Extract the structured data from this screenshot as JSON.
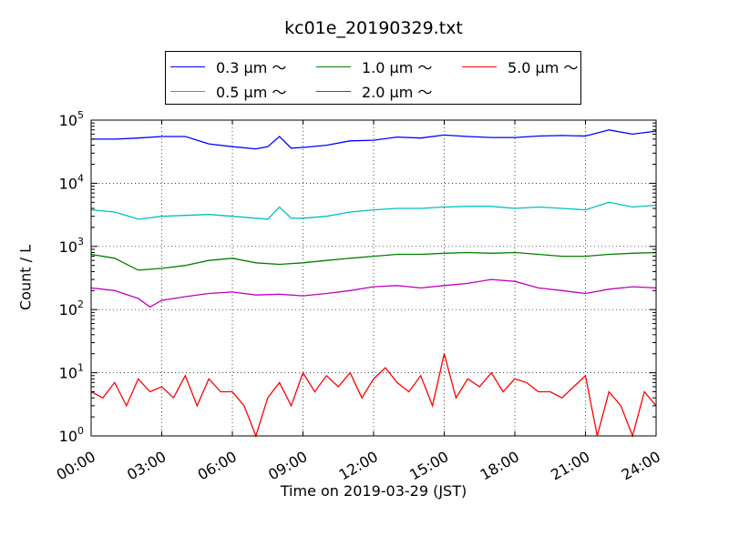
{
  "chart_data": {
    "type": "line",
    "title": "kc01e_20190329.txt",
    "xlabel": "Time on 2019-03-29 (JST)",
    "ylabel": "Count / L",
    "yscale": "log",
    "xlim_hours": [
      0,
      24
    ],
    "ylim": [
      1,
      100000
    ],
    "grid": true,
    "legend_position": "top-center",
    "x_ticks": [
      "00:00",
      "03:00",
      "06:00",
      "09:00",
      "12:00",
      "15:00",
      "18:00",
      "21:00",
      "24:00"
    ],
    "y_ticks": [
      {
        "base": "10",
        "exp": "0",
        "value": 1
      },
      {
        "base": "10",
        "exp": "1",
        "value": 10
      },
      {
        "base": "10",
        "exp": "2",
        "value": 100
      },
      {
        "base": "10",
        "exp": "3",
        "value": 1000
      },
      {
        "base": "10",
        "exp": "4",
        "value": 10000
      },
      {
        "base": "10",
        "exp": "5",
        "value": 100000
      }
    ],
    "series": [
      {
        "name": "0.3 μm ～",
        "color": "#0000ff",
        "x": [
          "00:00",
          "01:00",
          "02:00",
          "03:00",
          "04:00",
          "05:00",
          "06:00",
          "07:00",
          "07:30",
          "08:00",
          "08:30",
          "09:00",
          "10:00",
          "11:00",
          "12:00",
          "13:00",
          "14:00",
          "15:00",
          "16:00",
          "17:00",
          "18:00",
          "19:00",
          "20:00",
          "21:00",
          "22:00",
          "23:00",
          "24:00"
        ],
        "values": [
          50000,
          50000,
          52000,
          55000,
          55000,
          42000,
          38000,
          35000,
          38000,
          55000,
          36000,
          37000,
          40000,
          47000,
          48000,
          54000,
          52000,
          58000,
          55000,
          53000,
          53000,
          56000,
          57000,
          56000,
          70000,
          60000,
          67000
        ]
      },
      {
        "name": "0.5 μm ～",
        "color": "#00bfbf",
        "x": [
          "00:00",
          "01:00",
          "02:00",
          "03:00",
          "04:00",
          "05:00",
          "06:00",
          "07:00",
          "07:30",
          "08:00",
          "08:30",
          "09:00",
          "10:00",
          "11:00",
          "12:00",
          "13:00",
          "14:00",
          "15:00",
          "16:00",
          "17:00",
          "18:00",
          "19:00",
          "20:00",
          "21:00",
          "22:00",
          "23:00",
          "24:00"
        ],
        "values": [
          3800,
          3500,
          2700,
          3000,
          3100,
          3200,
          3000,
          2800,
          2700,
          4200,
          2800,
          2800,
          3000,
          3500,
          3800,
          4000,
          4000,
          4200,
          4300,
          4300,
          4000,
          4200,
          4000,
          3800,
          5000,
          4200,
          4500
        ]
      },
      {
        "name": "1.0 μm ～",
        "color": "#008000",
        "x": [
          "00:00",
          "01:00",
          "02:00",
          "03:00",
          "04:00",
          "05:00",
          "06:00",
          "07:00",
          "08:00",
          "09:00",
          "10:00",
          "11:00",
          "12:00",
          "13:00",
          "14:00",
          "15:00",
          "16:00",
          "17:00",
          "18:00",
          "19:00",
          "20:00",
          "21:00",
          "22:00",
          "23:00",
          "24:00"
        ],
        "values": [
          750,
          650,
          420,
          450,
          500,
          600,
          650,
          550,
          520,
          550,
          600,
          650,
          700,
          750,
          750,
          780,
          800,
          780,
          800,
          750,
          700,
          700,
          750,
          780,
          800
        ]
      },
      {
        "name": "2.0 μm ～",
        "color": "#bf00bf",
        "x": [
          "00:00",
          "01:00",
          "02:00",
          "02:30",
          "03:00",
          "04:00",
          "05:00",
          "06:00",
          "07:00",
          "08:00",
          "09:00",
          "10:00",
          "11:00",
          "12:00",
          "13:00",
          "14:00",
          "15:00",
          "16:00",
          "17:00",
          "18:00",
          "19:00",
          "20:00",
          "21:00",
          "22:00",
          "23:00",
          "24:00"
        ],
        "values": [
          220,
          200,
          150,
          110,
          140,
          160,
          180,
          190,
          170,
          175,
          165,
          180,
          200,
          230,
          240,
          220,
          240,
          260,
          300,
          280,
          220,
          200,
          180,
          210,
          230,
          220
        ]
      },
      {
        "name": "5.0 μm ～",
        "color": "#ff0000",
        "x": [
          "00:00",
          "00:30",
          "01:00",
          "01:30",
          "02:00",
          "02:30",
          "03:00",
          "03:30",
          "04:00",
          "04:30",
          "05:00",
          "05:30",
          "06:00",
          "06:30",
          "07:00",
          "07:30",
          "08:00",
          "08:30",
          "09:00",
          "09:30",
          "10:00",
          "10:30",
          "11:00",
          "11:30",
          "12:00",
          "12:30",
          "13:00",
          "13:30",
          "14:00",
          "14:30",
          "15:00",
          "15:30",
          "16:00",
          "16:30",
          "17:00",
          "17:30",
          "18:00",
          "18:30",
          "19:00",
          "19:30",
          "20:00",
          "20:30",
          "21:00",
          "21:30",
          "22:00",
          "22:30",
          "23:00",
          "23:30",
          "24:00"
        ],
        "values": [
          5,
          4,
          7,
          3,
          8,
          5,
          6,
          4,
          9,
          3,
          8,
          5,
          5,
          3,
          1,
          4,
          7,
          3,
          10,
          5,
          9,
          6,
          10,
          4,
          8,
          12,
          7,
          5,
          9,
          3,
          20,
          4,
          8,
          6,
          10,
          5,
          8,
          7,
          5,
          5,
          4,
          6,
          9,
          1,
          5,
          3,
          1,
          5,
          3
        ]
      }
    ]
  }
}
